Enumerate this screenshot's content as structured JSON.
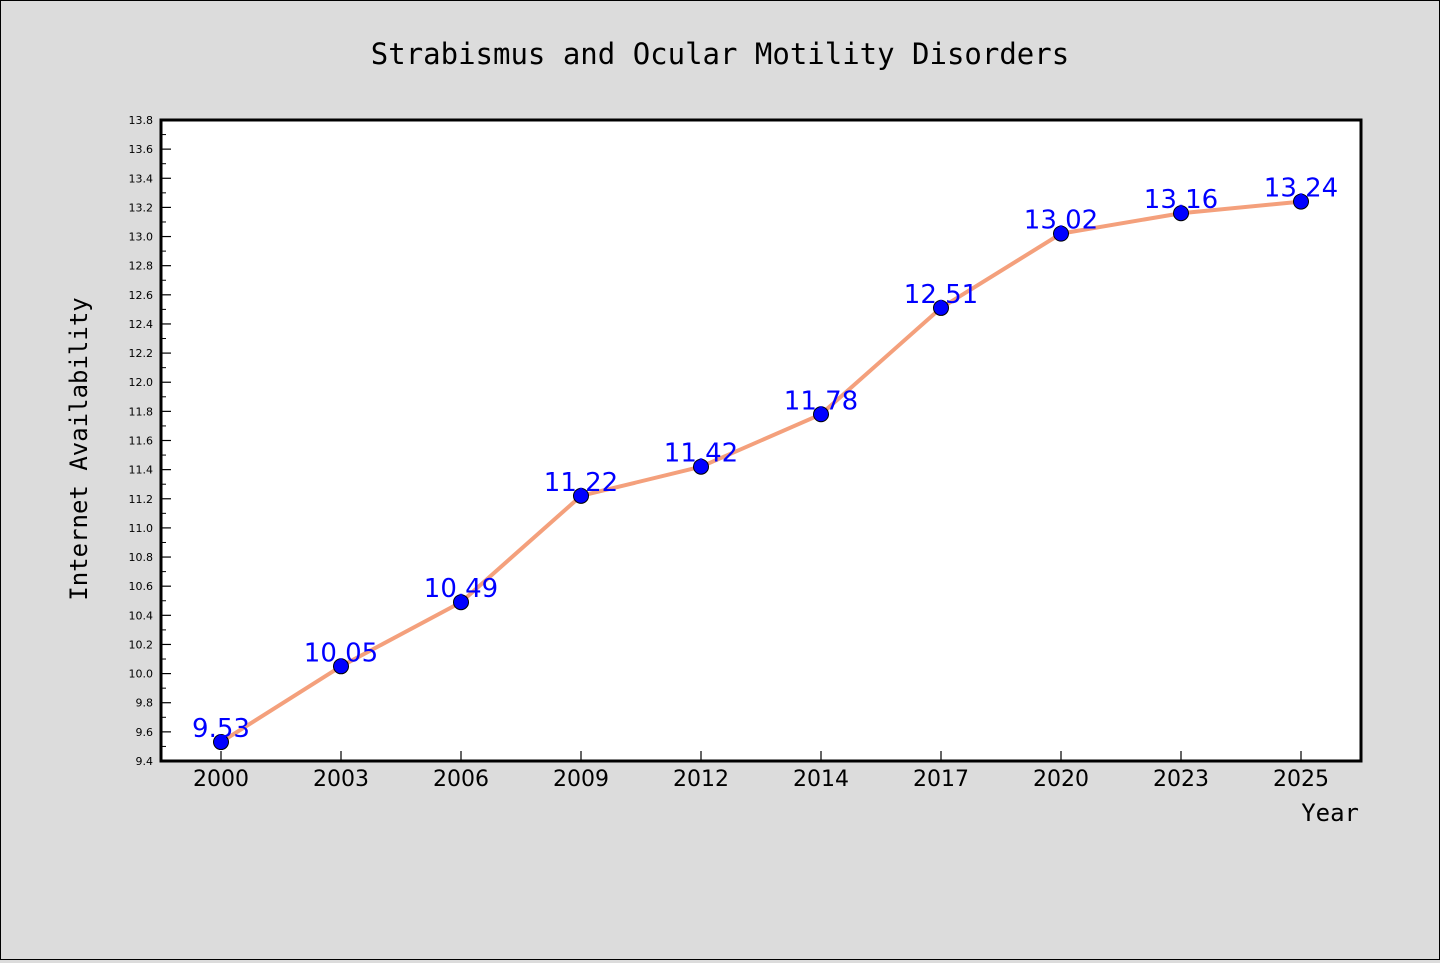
{
  "chart_data": {
    "type": "line",
    "title": "Strabismus and Ocular Motility Disorders",
    "xlabel": "Year",
    "ylabel": "Internet Availability",
    "categories": [
      "2000",
      "2003",
      "2006",
      "2009",
      "2012",
      "2014",
      "2017",
      "2020",
      "2023",
      "2025"
    ],
    "values": [
      9.53,
      10.05,
      10.49,
      11.22,
      11.42,
      11.78,
      12.51,
      13.02,
      13.16,
      13.24
    ],
    "data_labels": [
      "9.53",
      "10.05",
      "10.49",
      "11.22",
      "11.42",
      "11.78",
      "12.51",
      "13.02",
      "13.16",
      "13.24"
    ],
    "ylim": [
      9.4,
      13.8
    ],
    "yticks": [
      "9.4",
      "9.6",
      "9.8",
      "10.0",
      "10.2",
      "10.4",
      "10.6",
      "10.8",
      "11.0",
      "11.2",
      "11.4",
      "11.6",
      "11.8",
      "12.0",
      "12.2",
      "12.4",
      "12.6",
      "12.8",
      "13.0",
      "13.2",
      "13.4",
      "13.6",
      "13.8"
    ],
    "grid": false,
    "legend": "none",
    "colors": {
      "line": "#f4a07c",
      "marker": "#0000ff",
      "label": "#0000ff",
      "plot_background": "#ffffff",
      "figure_background": "#dcdcdc"
    }
  }
}
